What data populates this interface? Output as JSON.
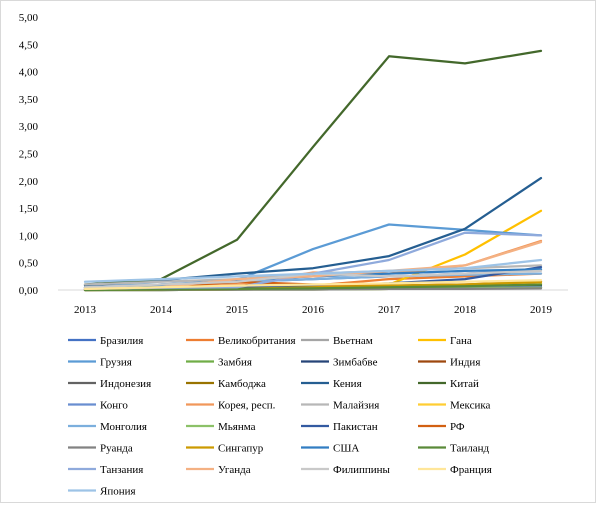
{
  "chart_data": {
    "type": "line",
    "title": "",
    "xlabel": "",
    "ylabel": "",
    "x": [
      "2013",
      "2014",
      "2015",
      "2016",
      "2017",
      "2018",
      "2019"
    ],
    "ylim": [
      0,
      5
    ],
    "yticks": [
      "0,00",
      "0,50",
      "1,00",
      "1,50",
      "2,00",
      "2,50",
      "3,00",
      "3,50",
      "4,00",
      "4,50",
      "5,00"
    ],
    "grid": false,
    "legend_position": "bottom",
    "series": [
      {
        "name": "Бразилия",
        "color": "#4472c4",
        "values": [
          0.05,
          0.1,
          0.15,
          0.2,
          0.25,
          0.3,
          0.37
        ]
      },
      {
        "name": "Великобритания",
        "color": "#ed7d31",
        "values": [
          0.02,
          0.05,
          0.12,
          0.08,
          0.2,
          0.25,
          0.3
        ]
      },
      {
        "name": "Вьетнам",
        "color": "#a5a5a5",
        "values": [
          0.01,
          0.02,
          0.03,
          0.04,
          0.06,
          0.08,
          0.1
        ]
      },
      {
        "name": "Гана",
        "color": "#ffc000",
        "values": [
          0.0,
          0.01,
          0.02,
          0.03,
          0.1,
          0.65,
          1.45
        ]
      },
      {
        "name": "Грузия",
        "color": "#5b9bd5",
        "values": [
          0.08,
          0.1,
          0.18,
          0.75,
          1.2,
          1.1,
          1.0
        ]
      },
      {
        "name": "Замбия",
        "color": "#70ad47",
        "values": [
          0.0,
          0.01,
          0.02,
          0.03,
          0.05,
          0.08,
          0.12
        ]
      },
      {
        "name": "Зимбабве",
        "color": "#264478",
        "values": [
          0.0,
          0.0,
          0.01,
          0.02,
          0.03,
          0.05,
          0.08
        ]
      },
      {
        "name": "Индия",
        "color": "#9e480e",
        "values": [
          0.05,
          0.08,
          0.1,
          0.05,
          0.05,
          0.08,
          0.15
        ]
      },
      {
        "name": "Индонезия",
        "color": "#636363",
        "values": [
          0.0,
          0.01,
          0.01,
          0.02,
          0.03,
          0.04,
          0.05
        ]
      },
      {
        "name": "Камбоджа",
        "color": "#997300",
        "values": [
          0.0,
          0.0,
          0.01,
          0.01,
          0.02,
          0.03,
          0.04
        ]
      },
      {
        "name": "Кения",
        "color": "#255e91",
        "values": [
          0.08,
          0.18,
          0.3,
          0.4,
          0.62,
          1.12,
          2.05
        ]
      },
      {
        "name": "Китай",
        "color": "#43682b",
        "values": [
          0.1,
          0.2,
          0.92,
          2.62,
          4.28,
          4.15,
          4.38
        ]
      },
      {
        "name": "Конго",
        "color": "#698ed0",
        "values": [
          0.0,
          0.01,
          0.02,
          0.02,
          0.03,
          0.04,
          0.05
        ]
      },
      {
        "name": "Корея, респ.",
        "color": "#f1975a",
        "values": [
          0.03,
          0.05,
          0.1,
          0.32,
          0.3,
          0.45,
          0.9
        ]
      },
      {
        "name": "Малайзия",
        "color": "#b7b7b7",
        "values": [
          0.1,
          0.15,
          0.2,
          0.3,
          0.35,
          0.4,
          0.45
        ]
      },
      {
        "name": "Мексика",
        "color": "#ffcd33",
        "values": [
          0.0,
          0.01,
          0.02,
          0.03,
          0.05,
          0.08,
          0.12
        ]
      },
      {
        "name": "Монголия",
        "color": "#7cafdd",
        "values": [
          0.05,
          0.1,
          0.15,
          0.2,
          0.25,
          0.28,
          0.3
        ]
      },
      {
        "name": "Мьянма",
        "color": "#8cc168",
        "values": [
          0.0,
          0.0,
          0.01,
          0.01,
          0.02,
          0.03,
          0.04
        ]
      },
      {
        "name": "Пакистан",
        "color": "#335aa1",
        "values": [
          0.0,
          0.02,
          0.05,
          0.08,
          0.12,
          0.2,
          0.42
        ]
      },
      {
        "name": "РФ",
        "color": "#d26012",
        "values": [
          0.02,
          0.05,
          0.15,
          0.1,
          0.08,
          0.1,
          0.15
        ]
      },
      {
        "name": "Руанда",
        "color": "#828282",
        "values": [
          0.0,
          0.0,
          0.01,
          0.01,
          0.02,
          0.02,
          0.03
        ]
      },
      {
        "name": "Сингапур",
        "color": "#cc9a00",
        "values": [
          0.0,
          0.01,
          0.02,
          0.05,
          0.08,
          0.1,
          0.15
        ]
      },
      {
        "name": "США",
        "color": "#327dc2",
        "values": [
          0.05,
          0.08,
          0.18,
          0.25,
          0.3,
          0.35,
          0.38
        ]
      },
      {
        "name": "Таиланд",
        "color": "#5a8a39",
        "values": [
          0.0,
          0.01,
          0.02,
          0.03,
          0.05,
          0.07,
          0.1
        ]
      },
      {
        "name": "Танзания",
        "color": "#8faadc",
        "values": [
          0.02,
          0.04,
          0.05,
          0.3,
          0.55,
          1.05,
          1.0
        ]
      },
      {
        "name": "Уганда",
        "color": "#f4b183",
        "values": [
          0.02,
          0.05,
          0.2,
          0.25,
          0.35,
          0.45,
          0.88
        ]
      },
      {
        "name": "Филиппины",
        "color": "#c9c9c9",
        "values": [
          0.05,
          0.1,
          0.15,
          0.3,
          0.25,
          0.3,
          0.35
        ]
      },
      {
        "name": "Франция",
        "color": "#ffe699",
        "values": [
          0.02,
          0.05,
          0.08,
          0.1,
          0.12,
          0.15,
          0.18
        ]
      },
      {
        "name": "Япония",
        "color": "#9dc3e6",
        "values": [
          0.15,
          0.2,
          0.25,
          0.3,
          0.35,
          0.4,
          0.55
        ]
      }
    ]
  }
}
